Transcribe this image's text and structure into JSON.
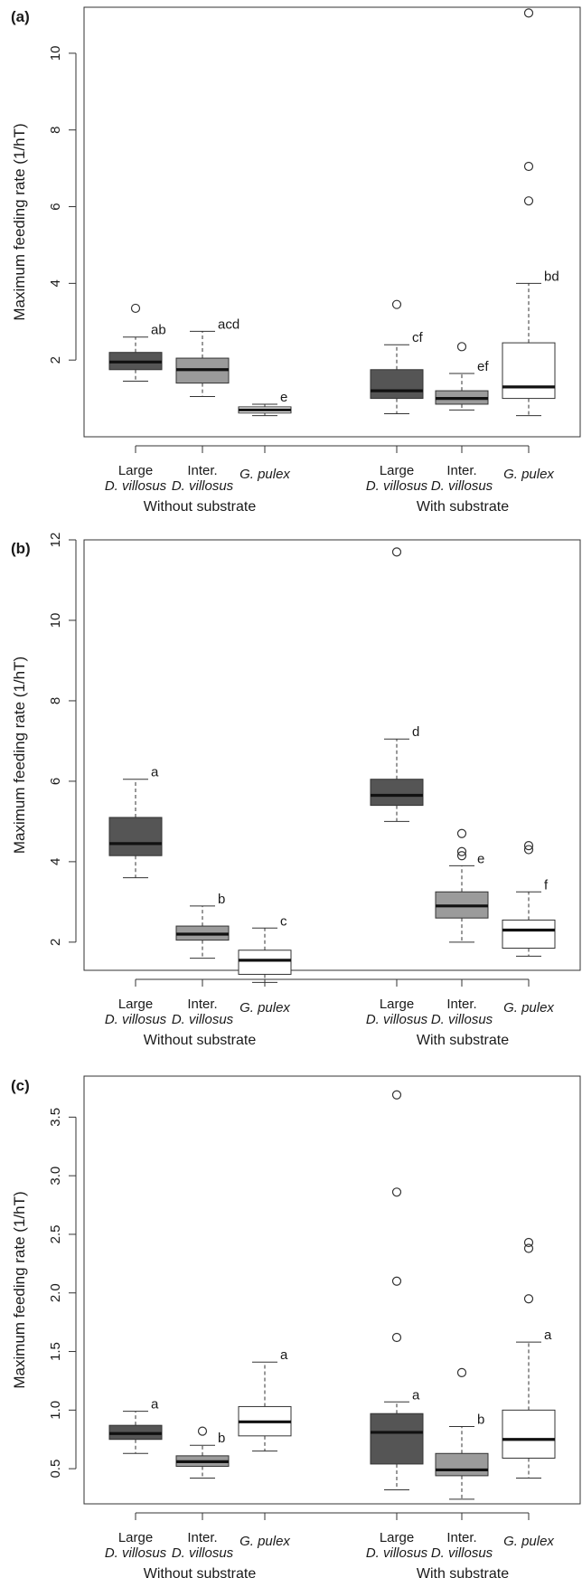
{
  "y_axis_label": "Maximum feeding rate (1/hT)",
  "chart_data": [
    {
      "type": "box",
      "panel_label": "(a)",
      "ylabel": "Maximum feeding rate (1/hT)",
      "ylim": [
        0,
        11.2
      ],
      "yticks": [
        2,
        4,
        6,
        8,
        10
      ],
      "ytick_labels": [
        "2",
        "4",
        "6",
        "8",
        "10"
      ],
      "groups": [
        "Without substrate",
        "With substrate"
      ],
      "series": [
        {
          "group": 0,
          "label_line1": "Large",
          "label_line2": "D. villosus",
          "color": "#555555",
          "whisker_low": 1.45,
          "q1": 1.75,
          "median": 1.95,
          "q3": 2.2,
          "whisker_high": 2.6,
          "outliers": [
            3.35
          ],
          "sig": "ab"
        },
        {
          "group": 0,
          "label_line1": "Inter.",
          "label_line2": "D. villosus",
          "color": "#9b9b9b",
          "whisker_low": 1.05,
          "q1": 1.4,
          "median": 1.75,
          "q3": 2.05,
          "whisker_high": 2.75,
          "outliers": [],
          "sig": "acd"
        },
        {
          "group": 0,
          "label_line1": "",
          "label_line2": "G. pulex",
          "color": "#ffffff",
          "whisker_low": 0.55,
          "q1": 0.62,
          "median": 0.7,
          "q3": 0.78,
          "whisker_high": 0.85,
          "outliers": [],
          "sig": "e"
        },
        {
          "group": 1,
          "label_line1": "Large",
          "label_line2": "D. villosus",
          "color": "#555555",
          "whisker_low": 0.6,
          "q1": 1.0,
          "median": 1.2,
          "q3": 1.75,
          "whisker_high": 2.4,
          "outliers": [
            3.45
          ],
          "sig": "cf"
        },
        {
          "group": 1,
          "label_line1": "Inter.",
          "label_line2": "D. villosus",
          "color": "#9b9b9b",
          "whisker_low": 0.7,
          "q1": 0.85,
          "median": 1.0,
          "q3": 1.2,
          "whisker_high": 1.65,
          "outliers": [
            2.35
          ],
          "sig": "ef"
        },
        {
          "group": 1,
          "label_line1": "",
          "label_line2": "G. pulex",
          "color": "#ffffff",
          "whisker_low": 0.55,
          "q1": 1.0,
          "median": 1.3,
          "q3": 2.45,
          "whisker_high": 4.0,
          "outliers": [
            6.15,
            7.05,
            11.05
          ],
          "sig": "bd"
        }
      ]
    },
    {
      "type": "box",
      "panel_label": "(b)",
      "ylabel": "Maximum feeding rate (1/hT)",
      "ylim": [
        1.3,
        12.0
      ],
      "yticks": [
        2,
        4,
        6,
        8,
        10,
        12
      ],
      "ytick_labels": [
        "2",
        "4",
        "6",
        "8",
        "10",
        "12"
      ],
      "groups": [
        "Without substrate",
        "With substrate"
      ],
      "series": [
        {
          "group": 0,
          "label_line1": "Large",
          "label_line2": "D. villosus",
          "color": "#555555",
          "whisker_low": 3.6,
          "q1": 4.15,
          "median": 4.45,
          "q3": 5.1,
          "whisker_high": 6.05,
          "outliers": [],
          "sig": "a"
        },
        {
          "group": 0,
          "label_line1": "Inter.",
          "label_line2": "D. villosus",
          "color": "#9b9b9b",
          "whisker_low": 1.6,
          "q1": 2.05,
          "median": 2.2,
          "q3": 2.4,
          "whisker_high": 2.9,
          "outliers": [],
          "sig": "b"
        },
        {
          "group": 0,
          "label_line1": "",
          "label_line2": "G. pulex",
          "color": "#ffffff",
          "whisker_low": 1.0,
          "q1": 1.2,
          "median": 1.55,
          "q3": 1.8,
          "whisker_high": 2.35,
          "outliers": [],
          "sig": "c"
        },
        {
          "group": 1,
          "label_line1": "Large",
          "label_line2": "D. villosus",
          "color": "#555555",
          "whisker_low": 5.0,
          "q1": 5.4,
          "median": 5.65,
          "q3": 6.05,
          "whisker_high": 7.05,
          "outliers": [
            11.7
          ],
          "sig": "d"
        },
        {
          "group": 1,
          "label_line1": "Inter.",
          "label_line2": "D. villosus",
          "color": "#9b9b9b",
          "whisker_low": 2.0,
          "q1": 2.6,
          "median": 2.9,
          "q3": 3.25,
          "whisker_high": 3.9,
          "outliers": [
            4.15,
            4.25,
            4.7
          ],
          "sig": "e"
        },
        {
          "group": 1,
          "label_line1": "",
          "label_line2": "G. pulex",
          "color": "#ffffff",
          "whisker_low": 1.65,
          "q1": 1.85,
          "median": 2.3,
          "q3": 2.55,
          "whisker_high": 3.25,
          "outliers": [
            4.3,
            4.4
          ],
          "sig": "f"
        }
      ]
    },
    {
      "type": "box",
      "panel_label": "(c)",
      "ylabel": "Maximum feeding rate (1/hT)",
      "ylim": [
        0.2,
        3.85
      ],
      "yticks": [
        0.5,
        1.0,
        1.5,
        2.0,
        2.5,
        3.0,
        3.5
      ],
      "ytick_labels": [
        "0.5",
        "1.0",
        "1.5",
        "2.0",
        "2.5",
        "3.0",
        "3.5"
      ],
      "groups": [
        "Without substrate",
        "With substrate"
      ],
      "series": [
        {
          "group": 0,
          "label_line1": "Large",
          "label_line2": "D. villosus",
          "color": "#555555",
          "whisker_low": 0.63,
          "q1": 0.75,
          "median": 0.8,
          "q3": 0.87,
          "whisker_high": 0.99,
          "outliers": [],
          "sig": "a"
        },
        {
          "group": 0,
          "label_line1": "Inter.",
          "label_line2": "D. villosus",
          "color": "#9b9b9b",
          "whisker_low": 0.42,
          "q1": 0.52,
          "median": 0.56,
          "q3": 0.61,
          "whisker_high": 0.7,
          "outliers": [
            0.82
          ],
          "sig": "b"
        },
        {
          "group": 0,
          "label_line1": "",
          "label_line2": "G. pulex",
          "color": "#ffffff",
          "whisker_low": 0.65,
          "q1": 0.78,
          "median": 0.9,
          "q3": 1.03,
          "whisker_high": 1.41,
          "outliers": [],
          "sig": "a"
        },
        {
          "group": 1,
          "label_line1": "Large",
          "label_line2": "D. villosus",
          "color": "#555555",
          "whisker_low": 0.32,
          "q1": 0.54,
          "median": 0.81,
          "q3": 0.97,
          "whisker_high": 1.07,
          "outliers": [
            1.62,
            2.1,
            2.86,
            3.69
          ],
          "sig": "a"
        },
        {
          "group": 1,
          "label_line1": "Inter.",
          "label_line2": "D. villosus",
          "color": "#9b9b9b",
          "whisker_low": 0.24,
          "q1": 0.44,
          "median": 0.49,
          "q3": 0.63,
          "whisker_high": 0.86,
          "outliers": [
            1.32
          ],
          "sig": "b"
        },
        {
          "group": 1,
          "label_line1": "",
          "label_line2": "G. pulex",
          "color": "#ffffff",
          "whisker_low": 0.42,
          "q1": 0.59,
          "median": 0.75,
          "q3": 1.0,
          "whisker_high": 1.58,
          "outliers": [
            1.95,
            2.38,
            2.43
          ],
          "sig": "a"
        }
      ]
    }
  ]
}
